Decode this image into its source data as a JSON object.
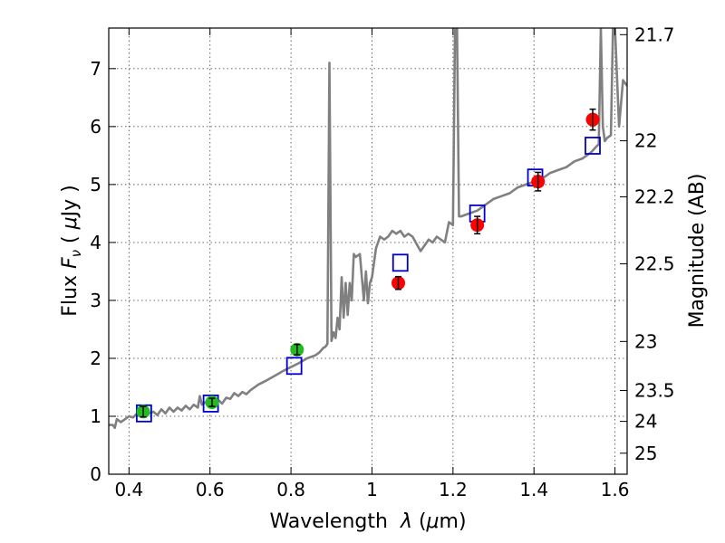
{
  "chart_data": {
    "type": "scatter",
    "xlabel": {
      "prefix": "Wavelength  ",
      "symbol": "λ",
      "unit_open": " (",
      "unit_symbol": "μ",
      "unit_rest": "m)"
    },
    "ylabel": {
      "prefix": "Flux  ",
      "symbol": "F",
      "subscript": "ν",
      "unit_open": "  ( ",
      "unit_symbol": "μ",
      "unit_rest": "Jy )"
    },
    "y2label": "Magnitude (AB)",
    "xlim": [
      0.35,
      1.63
    ],
    "ylim": [
      0,
      7.7
    ],
    "xticks": [
      {
        "value": 0.4,
        "label": "0.4"
      },
      {
        "value": 0.6,
        "label": "0.6"
      },
      {
        "value": 0.8,
        "label": "0.8"
      },
      {
        "value": 1.0,
        "label": "1"
      },
      {
        "value": 1.2,
        "label": "1.2"
      },
      {
        "value": 1.4,
        "label": "1.4"
      },
      {
        "value": 1.6,
        "label": "1.6"
      }
    ],
    "yticks": [
      {
        "value": 0,
        "label": "0"
      },
      {
        "value": 1,
        "label": "1"
      },
      {
        "value": 2,
        "label": "2"
      },
      {
        "value": 3,
        "label": "3"
      },
      {
        "value": 4,
        "label": "4"
      },
      {
        "value": 5,
        "label": "5"
      },
      {
        "value": 6,
        "label": "6"
      },
      {
        "value": 7,
        "label": "7"
      }
    ],
    "y2ticks": [
      {
        "mag": 21.7,
        "label": "21.7"
      },
      {
        "mag": 22,
        "label": "22"
      },
      {
        "mag": 22.2,
        "label": "22.2"
      },
      {
        "mag": 22.5,
        "label": "22.5"
      },
      {
        "mag": 23,
        "label": "23"
      },
      {
        "mag": 23.5,
        "label": "23.5"
      },
      {
        "mag": 24,
        "label": "24"
      },
      {
        "mag": 25,
        "label": "25"
      }
    ],
    "grid": true,
    "colors": {
      "spectrum": "#808080",
      "optical": "#22bb22",
      "nir": "#ff0000",
      "model": "#0000cc",
      "errorbar": "#000000"
    },
    "series": [
      {
        "kind": "line",
        "color": "#808080",
        "x": [
          0.35,
          0.36,
          0.365,
          0.37,
          0.38,
          0.39,
          0.4,
          0.41,
          0.42,
          0.43,
          0.44,
          0.45,
          0.46,
          0.47,
          0.48,
          0.49,
          0.5,
          0.51,
          0.52,
          0.53,
          0.54,
          0.55,
          0.56,
          0.57,
          0.575,
          0.58,
          0.59,
          0.6,
          0.61,
          0.62,
          0.63,
          0.64,
          0.65,
          0.66,
          0.67,
          0.68,
          0.69,
          0.7,
          0.72,
          0.74,
          0.76,
          0.78,
          0.8,
          0.82,
          0.84,
          0.86,
          0.87,
          0.88,
          0.885,
          0.89,
          0.895,
          0.9,
          0.905,
          0.91,
          0.915,
          0.92,
          0.925,
          0.93,
          0.935,
          0.94,
          0.945,
          0.95,
          0.955,
          0.96,
          0.97,
          0.98,
          0.985,
          0.99,
          0.995,
          1.0,
          1.01,
          1.02,
          1.03,
          1.04,
          1.05,
          1.06,
          1.07,
          1.08,
          1.09,
          1.1,
          1.12,
          1.14,
          1.15,
          1.16,
          1.18,
          1.19,
          1.2,
          1.205,
          1.21,
          1.215,
          1.22,
          1.24,
          1.26,
          1.28,
          1.3,
          1.32,
          1.34,
          1.36,
          1.38,
          1.4,
          1.42,
          1.44,
          1.46,
          1.48,
          1.5,
          1.52,
          1.54,
          1.56,
          1.565,
          1.57,
          1.575,
          1.58,
          1.59,
          1.595,
          1.6,
          1.61,
          1.62,
          1.63
        ],
        "y": [
          0.85,
          0.85,
          0.8,
          0.95,
          0.9,
          0.95,
          1.0,
          0.98,
          1.05,
          1.0,
          1.02,
          1.05,
          1.08,
          1.02,
          1.12,
          1.05,
          1.15,
          1.08,
          1.15,
          1.1,
          1.18,
          1.12,
          1.2,
          1.15,
          1.35,
          1.2,
          1.25,
          1.22,
          1.25,
          1.28,
          1.22,
          1.32,
          1.3,
          1.4,
          1.35,
          1.42,
          1.38,
          1.45,
          1.55,
          1.62,
          1.7,
          1.78,
          1.85,
          1.92,
          2.0,
          2.05,
          2.1,
          2.18,
          2.2,
          2.25,
          7.1,
          2.3,
          2.45,
          2.35,
          2.7,
          2.5,
          3.4,
          2.7,
          3.3,
          2.75,
          3.3,
          3.0,
          3.8,
          3.75,
          3.8,
          3.0,
          3.5,
          2.95,
          3.3,
          3.4,
          3.9,
          4.1,
          4.05,
          4.1,
          4.2,
          4.15,
          4.2,
          4.1,
          4.15,
          4.1,
          3.85,
          4.05,
          4.0,
          4.1,
          4.0,
          4.35,
          4.3,
          7.7,
          7.7,
          4.45,
          4.45,
          4.5,
          4.55,
          4.65,
          4.75,
          4.8,
          4.85,
          4.95,
          5.0,
          5.05,
          5.1,
          5.2,
          5.25,
          5.3,
          5.4,
          5.45,
          5.55,
          5.7,
          7.7,
          6.0,
          5.75,
          5.8,
          5.85,
          7.7,
          7.7,
          6.0,
          6.8,
          6.7
        ]
      },
      {
        "kind": "points",
        "name": "",
        "color": "#22bb22",
        "x": [
          0.435,
          0.605,
          0.815
        ],
        "y": [
          1.08,
          1.24,
          2.15
        ],
        "yerr": [
          0.09,
          0.07,
          0.09
        ]
      },
      {
        "kind": "points",
        "name": "",
        "color": "#ff0000",
        "x": [
          1.065,
          1.26,
          1.41,
          1.545
        ],
        "y": [
          3.3,
          4.3,
          5.05,
          6.12
        ],
        "yerr": [
          0.11,
          0.15,
          0.16,
          0.18
        ]
      },
      {
        "kind": "squares",
        "name": "",
        "color": "#0000cc",
        "x": [
          0.437,
          0.602,
          0.808,
          1.07,
          1.26,
          1.403,
          1.545
        ],
        "y": [
          1.05,
          1.22,
          1.87,
          3.65,
          4.5,
          5.12,
          5.67
        ]
      }
    ]
  }
}
